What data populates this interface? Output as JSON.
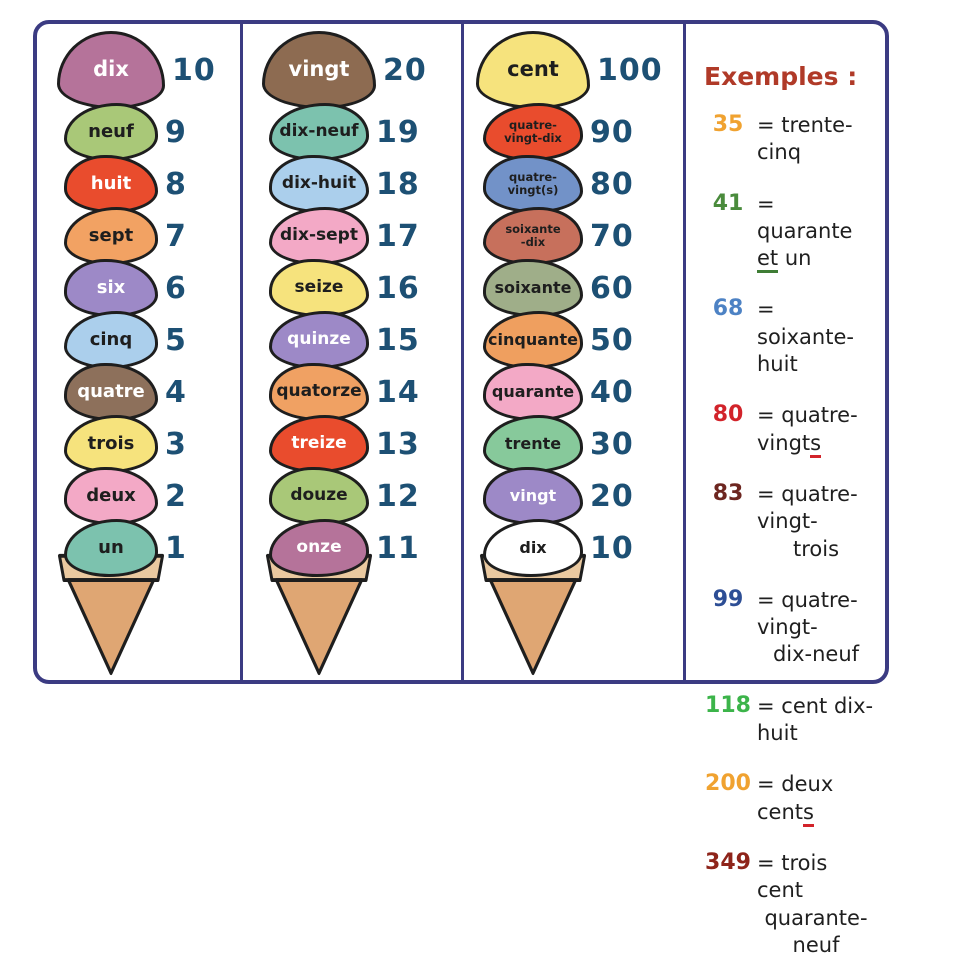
{
  "theme": {
    "frame_border": "#3b3b82",
    "outline": "#1e1e1e",
    "number_color": "#1d5074",
    "cone_body": "#dfa673",
    "cone_lip": "#eac9a0",
    "examples_title": "#b03a28",
    "text_color": "#1f1f1f",
    "underline_green": "#3f7d35",
    "underline_red": "#d2232a"
  },
  "columns": [
    {
      "name": "units",
      "scoops": [
        {
          "label": "dix",
          "value": "10",
          "color": "#b5739a",
          "text_color": "#ffffff"
        },
        {
          "label": "neuf",
          "value": "9",
          "color": "#a9c878",
          "text_color": "#1e1e1e"
        },
        {
          "label": "huit",
          "value": "8",
          "color": "#e94c2d",
          "text_color": "#ffffff"
        },
        {
          "label": "sept",
          "value": "7",
          "color": "#f2a263",
          "text_color": "#1e1e1e"
        },
        {
          "label": "six",
          "value": "6",
          "color": "#9d89c7",
          "text_color": "#ffffff"
        },
        {
          "label": "cinq",
          "value": "5",
          "color": "#abcfec",
          "text_color": "#1e1e1e"
        },
        {
          "label": "quatre",
          "value": "4",
          "color": "#8d705b",
          "text_color": "#ffffff"
        },
        {
          "label": "trois",
          "value": "3",
          "color": "#f6e37d",
          "text_color": "#1e1e1e"
        },
        {
          "label": "deux",
          "value": "2",
          "color": "#f3a9c6",
          "text_color": "#1e1e1e"
        },
        {
          "label": "un",
          "value": "1",
          "color": "#7cc2ae",
          "text_color": "#1e1e1e"
        }
      ]
    },
    {
      "name": "teens",
      "scoops": [
        {
          "label": "vingt",
          "value": "20",
          "color": "#8d6b51",
          "text_color": "#ffffff"
        },
        {
          "label": "dix-neuf",
          "value": "19",
          "color": "#7cc2ae",
          "text_color": "#1e1e1e"
        },
        {
          "label": "dix-huit",
          "value": "18",
          "color": "#abcfec",
          "text_color": "#1e1e1e"
        },
        {
          "label": "dix-sept",
          "value": "17",
          "color": "#f3a9c6",
          "text_color": "#1e1e1e"
        },
        {
          "label": "seize",
          "value": "16",
          "color": "#f6e37d",
          "text_color": "#1e1e1e"
        },
        {
          "label": "quinze",
          "value": "15",
          "color": "#9d89c7",
          "text_color": "#ffffff"
        },
        {
          "label": "quatorze",
          "value": "14",
          "color": "#f0a163",
          "text_color": "#1e1e1e"
        },
        {
          "label": "treize",
          "value": "13",
          "color": "#e94c2d",
          "text_color": "#ffffff"
        },
        {
          "label": "douze",
          "value": "12",
          "color": "#a9c878",
          "text_color": "#1e1e1e"
        },
        {
          "label": "onze",
          "value": "11",
          "color": "#b5739a",
          "text_color": "#ffffff"
        }
      ]
    },
    {
      "name": "tens",
      "scoops": [
        {
          "label": "cent",
          "value": "100",
          "color": "#f6e37d",
          "text_color": "#1e1e1e"
        },
        {
          "label": "quatre-\nvingt-dix",
          "value": "90",
          "color": "#e94c2d",
          "text_color": "#1e1e1e"
        },
        {
          "label": "quatre-\nvingt(s)",
          "value": "80",
          "color": "#7292c8",
          "text_color": "#1e1e1e"
        },
        {
          "label": "soixante\n-dix",
          "value": "70",
          "color": "#c7705c",
          "text_color": "#1e1e1e"
        },
        {
          "label": "soixante",
          "value": "60",
          "color": "#9fae89",
          "text_color": "#1e1e1e"
        },
        {
          "label": "cinquante",
          "value": "50",
          "color": "#ef9f5f",
          "text_color": "#1e1e1e"
        },
        {
          "label": "quarante",
          "value": "40",
          "color": "#f3a9c6",
          "text_color": "#1e1e1e"
        },
        {
          "label": "trente",
          "value": "30",
          "color": "#87c99b",
          "text_color": "#1e1e1e"
        },
        {
          "label": "vingt",
          "value": "20",
          "color": "#9d89c7",
          "text_color": "#ffffff"
        },
        {
          "label": "dix",
          "value": "10",
          "color": "#ffffff",
          "text_color": "#1e1e1e"
        }
      ]
    }
  ],
  "examples": {
    "title": "Exemples :",
    "items": [
      {
        "num": "35",
        "color": "#f0a230",
        "pre": "= trente-cinq"
      },
      {
        "num": "41",
        "color": "#4a8b3c",
        "pre": "= quarante ",
        "under": "et",
        "under_color": "#3f7d35",
        "post": " un"
      },
      {
        "num": "68",
        "color": "#4d82c4",
        "pre": "= soixante-huit"
      },
      {
        "num": "80",
        "color": "#d2232a",
        "pre": "= quatre-vingt",
        "under": "s",
        "under_color": "#d2232a"
      },
      {
        "num": "83",
        "color": "#6d2620",
        "pre": "= quatre-vingt-",
        "line2": "trois"
      },
      {
        "num": "99",
        "color": "#2d4e95",
        "pre": "= quatre-vingt-",
        "line2": "dix-neuf"
      },
      {
        "num": "118",
        "color": "#3cb44a",
        "pre": "= cent dix-huit"
      },
      {
        "num": "200",
        "color": "#f0a230",
        "pre": "= deux cent",
        "under": "s",
        "under_color": "#d2232a"
      },
      {
        "num": "349",
        "color": "#8e241a",
        "pre": "= trois cent",
        "line2": "quarante-neuf"
      }
    ]
  }
}
